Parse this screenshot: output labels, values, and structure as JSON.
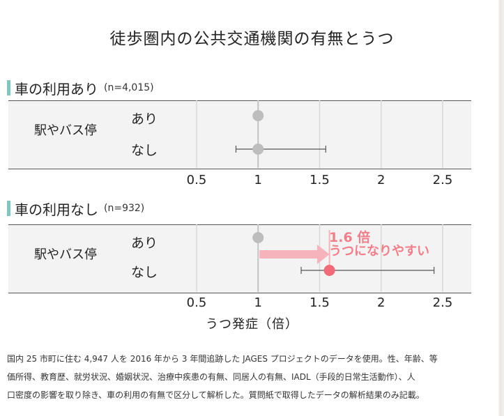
{
  "title": "徒歩圏内の公共交通機関の有無とうつ",
  "chart_data": [
    {
      "type": "scatter",
      "panel": "car_yes",
      "section_title": "車の利用あり",
      "n_label": "(n=4,015)",
      "group_label": "駅やバス停",
      "rows": [
        {
          "label": "あり",
          "value": 1.0,
          "ci_low": null,
          "ci_high": null,
          "color": "#bdbdbd"
        },
        {
          "label": "なし",
          "value": 1.0,
          "ci_low": 0.82,
          "ci_high": 1.55,
          "color": "#bdbdbd"
        }
      ],
      "xticks": [
        "0.5",
        "1",
        "1.5",
        "2",
        "2.5"
      ],
      "xlim": [
        0.25,
        2.75
      ],
      "grid": true
    },
    {
      "type": "scatter",
      "panel": "car_no",
      "section_title": "車の利用なし",
      "n_label": "(n=932)",
      "group_label": "駅やバス停",
      "rows": [
        {
          "label": "あり",
          "value": 1.0,
          "ci_low": null,
          "ci_high": null,
          "color": "#bdbdbd"
        },
        {
          "label": "なし",
          "value": 1.58,
          "ci_low": 1.35,
          "ci_high": 2.43,
          "color": "#f26a7a"
        }
      ],
      "xticks": [
        "0.5",
        "1",
        "1.5",
        "2",
        "2.5"
      ],
      "xlim": [
        0.25,
        2.75
      ],
      "grid": true,
      "annotation": {
        "line1": "1.6 倍",
        "line2": "うつになりやすい",
        "color": "#f27e8a"
      }
    }
  ],
  "xlabel": "うつ発症（倍）",
  "footnote": {
    "line1": "国内 25 市町に住む 4,947 人を 2016 年から 3 年間追跡した JAGES プロジェクトのデータを使用。性、年齢、等",
    "line2": "価所得、教育歴、就労状況、婚姻状況、治療中疾患の有無、同居人の有無、IADL（手段的日常生活動作）、人",
    "line3": "口密度の影響を取り除き、車の利用の有無で区分して解析した。質問紙で取得したデータの解析結果のみ記載。"
  }
}
